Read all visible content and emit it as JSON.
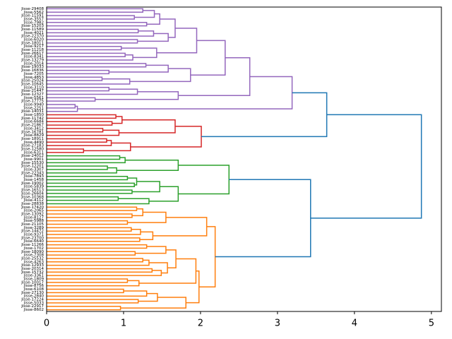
{
  "chart_data": {
    "type": "dendrogram",
    "orientation": "right",
    "xlim": [
      0,
      5.13
    ],
    "xticks": [
      0,
      1,
      2,
      3,
      4,
      5
    ],
    "tree": {
      "height": 4.87,
      "color": "#1f77b4",
      "children": [
        {
          "height": 3.64,
          "children": [
            {
              "height": 3.19,
              "color": "#9467bd",
              "children": [
                {
                  "height": 2.64,
                  "children": [
                    {
                      "height": 2.32,
                      "children": [
                        {
                          "height": 1.95,
                          "children": [
                            {
                              "height": 1.67,
                              "children": [
                                {
                                  "height": 1.47,
                                  "children": [
                                    {
                                      "height": 1.4,
                                      "children": [
                                        {
                                          "height": 1.25,
                                          "children": [
                                            "Jisse-29408",
                                            "Jisse-5562"
                                          ]
                                        },
                                        {
                                          "height": 1.14,
                                          "children": [
                                            "Jisse-11591",
                                            "Jisse-3557"
                                          ]
                                        }
                                      ]
                                    },
                                    {
                                      "height": 1.3,
                                      "children": [
                                        "Jisse-7982",
                                        "Jisse-15203"
                                      ]
                                    }
                                  ]
                                },
                                {
                                  "height": 1.58,
                                  "children": [
                                    {
                                      "height": 1.39,
                                      "children": [
                                        {
                                          "height": 1.19,
                                          "children": [
                                            "Jisse-11589",
                                            "Jisse-4021"
                                          ]
                                        },
                                        "Jisse-22370"
                                      ]
                                    },
                                    {
                                      "height": 1.18,
                                      "children": [
                                        "Jisse-6020",
                                        "Jisse-18011"
                                      ]
                                    }
                                  ]
                                }
                              ]
                            },
                            {
                              "height": 1.43,
                              "children": [
                                {
                                  "height": 0.97,
                                  "children": [
                                    "Jisse-9217",
                                    "Jisse-11218"
                                  ]
                                },
                                {
                                  "height": 1.12,
                                  "children": [
                                    {
                                      "height": 1.02,
                                      "children": [
                                        "Jisse-26617",
                                        "Jisse-8341"
                                      ]
                                    },
                                    "Jisse-13279"
                                  ]
                                }
                              ]
                            }
                          ]
                        },
                        {
                          "height": 1.87,
                          "children": [
                            {
                              "height": 1.58,
                              "children": [
                                {
                                  "height": 1.29,
                                  "children": [
                                    "Jisse-2014",
                                    "Jisse-19033"
                                  ]
                                },
                                {
                                  "height": 0.81,
                                  "children": [
                                    "Jisse-16836",
                                    "Jisse-7205"
                                  ]
                                }
                              ]
                            },
                            {
                              "height": 1.08,
                              "children": [
                                {
                                  "height": 0.72,
                                  "children": [
                                    "Jisse-4853",
                                    "Jisse-25024"
                                  ]
                                },
                                "Jisse-10645"
                              ]
                            }
                          ]
                        }
                      ]
                    },
                    {
                      "height": 1.71,
                      "children": [
                        {
                          "height": 1.18,
                          "children": [
                            {
                              "height": 0.81,
                              "children": [
                                "Jisse-3110",
                                "Jisse-21447"
                              ]
                            },
                            "Jisse-12327"
                          ]
                        },
                        {
                          "height": 0.63,
                          "children": [
                            "Jisse-5561",
                            "Jisse-17775"
                          ]
                        }
                      ]
                    }
                  ]
                },
                {
                  "height": 0.4,
                  "children": [
                    {
                      "height": 0.37,
                      "children": [
                        "Jisse-9940",
                        "Jisse-2251"
                      ]
                    },
                    "Jisse-14031"
                  ]
                }
              ]
            },
            {
              "height": 2.01,
              "color": "#d62728",
              "children": [
                {
                  "height": 1.67,
                  "children": [
                    {
                      "height": 0.98,
                      "children": [
                        {
                          "height": 0.9,
                          "children": [
                            "Jisse-1850",
                            "Jisse-11742"
                          ]
                        },
                        {
                          "height": 0.85,
                          "children": [
                            "Jisse-6684",
                            "Jisse-21867"
                          ]
                        }
                      ]
                    },
                    {
                      "height": 0.94,
                      "children": [
                        {
                          "height": 0.73,
                          "children": [
                            "Jisse-3412",
                            "Jisse-16781"
                          ]
                        },
                        "Jisse-8829"
                      ]
                    }
                  ]
                },
                {
                  "height": 1.09,
                  "children": [
                    {
                      "height": 0.84,
                      "children": [
                        {
                          "height": 0.78,
                          "children": [
                            "Jisse-18911",
                            "Jisse-4490"
                          ]
                        },
                        "Jisse-27183"
                      ]
                    },
                    {
                      "height": 0.48,
                      "children": [
                        "Jisse-12580",
                        "Jisse-6311"
                      ]
                    }
                  ]
                }
              ]
            }
          ]
        },
        {
          "height": 3.43,
          "children": [
            {
              "height": 2.37,
              "color": "#2ca02c",
              "children": [
                {
                  "height": 1.71,
                  "children": [
                    {
                      "height": 1.02,
                      "children": [
                        {
                          "height": 0.95,
                          "children": [
                            "Jisse-24012",
                            "Jisse-9901"
                          ]
                        },
                        "Jisse-15530"
                      ]
                    },
                    {
                      "height": 0.91,
                      "children": [
                        {
                          "height": 0.79,
                          "children": [
                            "Jisse-12201",
                            "Jisse-3307"
                          ]
                        },
                        "Jisse-22343"
                      ]
                    }
                  ]
                },
                {
                  "height": 1.71,
                  "children": [
                    {
                      "height": 1.47,
                      "children": [
                        {
                          "height": 1.17,
                          "children": [
                            {
                              "height": 1.05,
                              "children": [
                                "Jisse-7893",
                                "Jisse-1458"
                              ]
                            },
                            {
                              "height": 1.14,
                              "children": [
                                "Jisse-19002",
                                "Jisse-5839"
                              ]
                            }
                          ]
                        },
                        {
                          "height": 1.11,
                          "children": [
                            "Jisse-16513",
                            "Jisse-26604"
                          ]
                        }
                      ]
                    },
                    {
                      "height": 1.33,
                      "children": [
                        {
                          "height": 0.93,
                          "children": [
                            "Jisse-10368",
                            "Jisse-4112"
                          ]
                        },
                        "Jisse-28838"
                      ]
                    }
                  ]
                }
              ]
            },
            {
              "height": 2.19,
              "color": "#ff7f0e",
              "children": [
                {
                  "height": 2.08,
                  "children": [
                    {
                      "height": 1.55,
                      "children": [
                        {
                          "height": 1.25,
                          "children": [
                            {
                              "height": 1.17,
                              "children": [
                                "Jisse-17420",
                                "Jisse-2065"
                              ]
                            },
                            {
                              "height": 1.11,
                              "children": [
                                "Jisse-13092",
                                "Jisse-8127"
                              ]
                            }
                          ]
                        },
                        {
                          "height": 1.05,
                          "children": [
                            "Jisse-5988",
                            "Jisse-21105"
                          ]
                        }
                      ]
                    },
                    {
                      "height": 1.38,
                      "children": [
                        {
                          "height": 1.22,
                          "children": [
                            {
                              "height": 1.1,
                              "children": [
                                "Jisse-3289",
                                "Jisse-14472"
                              ]
                            },
                            "Jisse-9371"
                          ]
                        },
                        {
                          "height": 1.21,
                          "children": [
                            "Jisse-23700",
                            "Jisse-6640"
                          ]
                        }
                      ]
                    }
                  ]
                },
                {
                  "height": 1.98,
                  "children": [
                    {
                      "height": 1.94,
                      "children": [
                        {
                          "height": 1.68,
                          "children": [
                            {
                              "height": 1.55,
                              "children": [
                                {
                                  "height": 1.3,
                                  "children": [
                                    "Jisse-11266",
                                    "Jisse-1702"
                                  ]
                                },
                                {
                                  "height": 1.15,
                                  "children": [
                                    "Jisse-18090",
                                    "Jisse-7308"
                                  ]
                                }
                              ]
                            },
                            {
                              "height": 1.57,
                              "children": [
                                {
                                  "height": 1.33,
                                  "children": [
                                    {
                                      "height": 1.25,
                                      "children": [
                                        "Jisse-25532",
                                        "Jisse-4263"
                                      ]
                                    },
                                    "Jisse-12933"
                                  ]
                                },
                                {
                                  "height": 1.49,
                                  "children": [
                                    {
                                      "height": 1.37,
                                      "children": [
                                        "Jisse-20314",
                                        "Jisse-15732"
                                      ]
                                    },
                                    "Jisse-3361"
                                  ]
                                }
                              ]
                            }
                          ]
                        },
                        {
                          "height": 1.2,
                          "children": [
                            {
                              "height": 1.05,
                              "children": [
                                "Jisse-1809",
                                "Jisse-10017"
                              ]
                            },
                            "Jisse-8756"
                          ]
                        }
                      ]
                    },
                    {
                      "height": 1.81,
                      "children": [
                        {
                          "height": 1.44,
                          "children": [
                            {
                              "height": 1.3,
                              "children": [
                                {
                                  "height": 1.0,
                                  "children": [
                                    "Jisse-6108",
                                    "Jisse-27130"
                                  ]
                                },
                                "Jisse-2840"
                              ]
                            },
                            {
                              "height": 1.19,
                              "children": [
                                "Jisse-17224",
                                "Jisse-5033"
                              ]
                            }
                          ]
                        },
                        {
                          "height": 0.96,
                          "children": [
                            "Jisse-22917",
                            "Jisse-8602"
                          ]
                        }
                      ]
                    }
                  ]
                }
              ]
            }
          ]
        }
      ]
    }
  }
}
